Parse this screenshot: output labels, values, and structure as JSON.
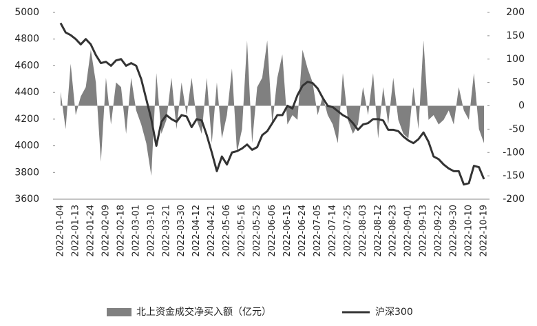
{
  "chart_data": {
    "type": "combo",
    "categories": [
      "2022-01-04",
      null,
      null,
      "2022-01-13",
      null,
      null,
      "2022-01-24",
      null,
      null,
      "2022-02-09",
      null,
      null,
      "2022-02-18",
      null,
      null,
      "2022-03-01",
      null,
      null,
      "2022-03-10",
      null,
      null,
      "2022-03-21",
      null,
      null,
      "2022-03-30",
      null,
      null,
      "2022-04-12",
      null,
      null,
      "2022-04-21",
      null,
      null,
      "2022-05-06",
      null,
      null,
      "2022-05-16",
      null,
      null,
      "2022-05-25",
      null,
      null,
      "2022-06-06",
      null,
      null,
      "2022-06-15",
      null,
      null,
      "2022-06-24",
      null,
      null,
      "2022-07-05",
      null,
      null,
      "2022-07-14",
      null,
      null,
      "2022-07-25",
      null,
      null,
      "2022-08-03",
      null,
      null,
      "2022-08-12",
      null,
      null,
      "2022-08-23",
      null,
      null,
      "2022-09-01",
      null,
      null,
      "2022-09-13",
      null,
      null,
      "2022-09-22",
      null,
      null,
      "2022-09-30",
      null,
      null,
      "2022-10-10",
      null,
      null,
      "2022-10-19"
    ],
    "series": [
      {
        "name": "北上资金成交净买入额（亿元）",
        "type": "area",
        "axis": "y2",
        "color": "#808080",
        "values": [
          30,
          -50,
          90,
          -20,
          20,
          40,
          120,
          50,
          -120,
          60,
          -40,
          50,
          40,
          -60,
          60,
          -10,
          -40,
          -80,
          -150,
          70,
          -60,
          -30,
          60,
          -50,
          50,
          -20,
          60,
          -30,
          -60,
          60,
          -80,
          50,
          -70,
          -20,
          80,
          -100,
          -50,
          140,
          -80,
          40,
          60,
          140,
          -40,
          60,
          110,
          -40,
          -20,
          -30,
          120,
          80,
          50,
          -20,
          20,
          -20,
          -40,
          -80,
          70,
          -30,
          -60,
          -40,
          40,
          -20,
          70,
          -70,
          40,
          -40,
          60,
          -30,
          -60,
          -70,
          40,
          -50,
          140,
          -30,
          -20,
          -40,
          -30,
          -10,
          -40,
          40,
          -10,
          -30,
          70,
          -50,
          -80
        ]
      },
      {
        "name": "沪深300",
        "type": "line",
        "color": "#333333",
        "values": [
          4920,
          4850,
          4830,
          4800,
          4760,
          4800,
          4760,
          4680,
          4620,
          4630,
          4600,
          4640,
          4650,
          4600,
          4620,
          4600,
          4500,
          4350,
          4200,
          4000,
          4180,
          4230,
          4200,
          4180,
          4230,
          4220,
          4140,
          4200,
          4190,
          4080,
          3950,
          3810,
          3920,
          3860,
          3950,
          3960,
          3980,
          4010,
          3970,
          3990,
          4080,
          4110,
          4170,
          4230,
          4230,
          4300,
          4280,
          4380,
          4450,
          4480,
          4470,
          4430,
          4360,
          4300,
          4290,
          4260,
          4230,
          4210,
          4170,
          4120,
          4160,
          4170,
          4200,
          4200,
          4190,
          4120,
          4120,
          4110,
          4070,
          4040,
          4020,
          4050,
          4100,
          4030,
          3920,
          3900,
          3860,
          3830,
          3810,
          3810,
          3710,
          3720,
          3850,
          3840,
          3750
        ]
      }
    ],
    "ylim": [
      3600,
      5000
    ],
    "yticks": [
      3600,
      3800,
      4000,
      4200,
      4400,
      4600,
      4800,
      5000
    ],
    "y2lim": [
      -200,
      200
    ],
    "y2ticks": [
      -200,
      -150,
      -100,
      -50,
      0,
      50,
      100,
      150,
      200
    ],
    "grid": false,
    "legend": "bottom"
  }
}
